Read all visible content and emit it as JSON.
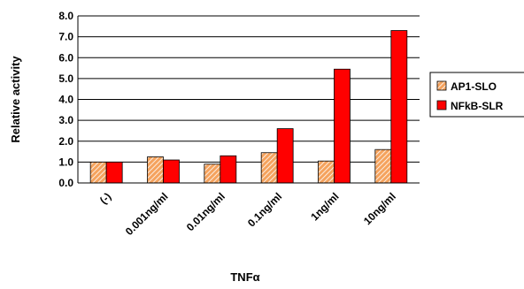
{
  "chart_data": {
    "type": "bar",
    "title": "",
    "xlabel": "TNFα",
    "ylabel": "Relative activity",
    "categories": [
      "(-)",
      "0.001ng/ml",
      "0.01ng/ml",
      "0.1ng/ml",
      "1ng/ml",
      "10ng/ml"
    ],
    "series": [
      {
        "name": "AP1-SLO",
        "values": [
          1.0,
          1.25,
          0.9,
          1.45,
          1.05,
          1.6
        ]
      },
      {
        "name": "NFkB-SLR",
        "values": [
          1.0,
          1.1,
          1.3,
          2.6,
          5.45,
          7.3
        ]
      }
    ],
    "ylim": [
      0,
      8
    ],
    "yticks": [
      "0.0",
      "1.0",
      "2.0",
      "3.0",
      "4.0",
      "5.0",
      "6.0",
      "7.0",
      "8.0"
    ],
    "grid": true,
    "legend_position": "right",
    "colors": {
      "AP1-SLO": "#f5a35e",
      "AP1-SLO-hatch": "#ffffff",
      "NFkB-SLR": "#ff0000"
    }
  }
}
